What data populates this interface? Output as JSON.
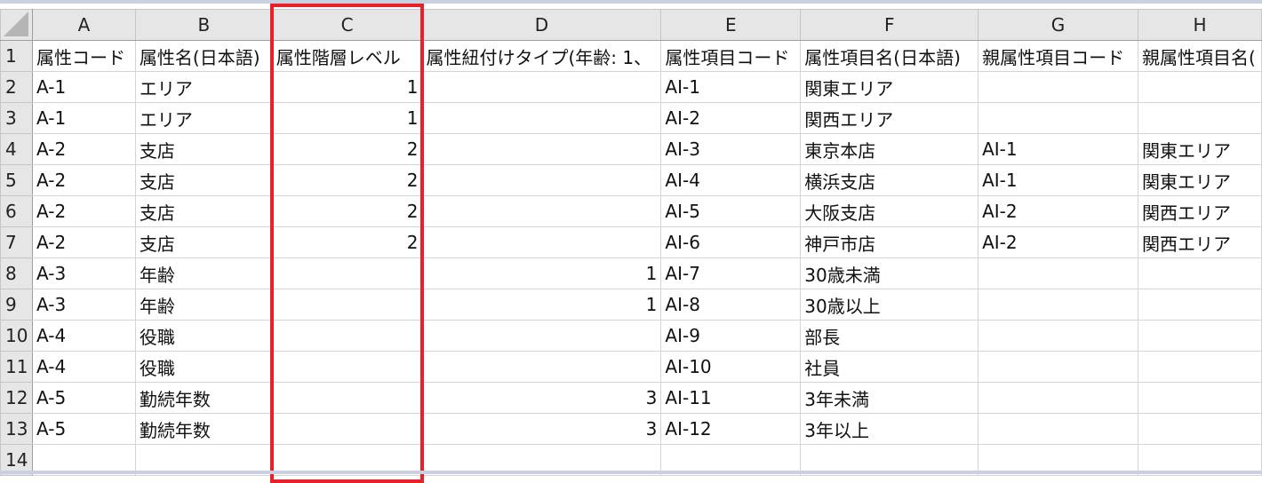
{
  "column_headers": [
    "A",
    "B",
    "C",
    "D",
    "E",
    "F",
    "G",
    "H"
  ],
  "rows": [
    {
      "n": "1",
      "cells": [
        "属性コード",
        "属性名(日本語)",
        "属性階層レベル",
        "属性紐付けタイプ(年齢: 1、",
        "属性項目コード",
        "属性項目名(日本語)",
        "親属性項目コード",
        "親属性項目名("
      ]
    },
    {
      "n": "2",
      "cells": [
        "A-1",
        "エリア",
        "1",
        "",
        "AI-1",
        "関東エリア",
        "",
        ""
      ]
    },
    {
      "n": "3",
      "cells": [
        "A-1",
        "エリア",
        "1",
        "",
        "AI-2",
        "関西エリア",
        "",
        ""
      ]
    },
    {
      "n": "4",
      "cells": [
        "A-2",
        "支店",
        "2",
        "",
        "AI-3",
        "東京本店",
        "AI-1",
        "関東エリア"
      ]
    },
    {
      "n": "5",
      "cells": [
        "A-2",
        "支店",
        "2",
        "",
        "AI-4",
        "横浜支店",
        "AI-1",
        "関東エリア"
      ]
    },
    {
      "n": "6",
      "cells": [
        "A-2",
        "支店",
        "2",
        "",
        "AI-5",
        "大阪支店",
        "AI-2",
        "関西エリア"
      ]
    },
    {
      "n": "7",
      "cells": [
        "A-2",
        "支店",
        "2",
        "",
        "AI-6",
        "神戸市店",
        "AI-2",
        "関西エリア"
      ]
    },
    {
      "n": "8",
      "cells": [
        "A-3",
        "年齢",
        "",
        "1",
        "AI-7",
        "30歳未満",
        "",
        ""
      ]
    },
    {
      "n": "9",
      "cells": [
        "A-3",
        "年齢",
        "",
        "1",
        "AI-8",
        "30歳以上",
        "",
        ""
      ]
    },
    {
      "n": "10",
      "cells": [
        "A-4",
        "役職",
        "",
        "",
        "AI-9",
        "部長",
        "",
        ""
      ]
    },
    {
      "n": "11",
      "cells": [
        "A-4",
        "役職",
        "",
        "",
        "AI-10",
        "社員",
        "",
        ""
      ]
    },
    {
      "n": "12",
      "cells": [
        "A-5",
        "勤続年数",
        "",
        "3",
        "AI-11",
        "3年未満",
        "",
        ""
      ]
    },
    {
      "n": "13",
      "cells": [
        "A-5",
        "勤続年数",
        "",
        "3",
        "AI-12",
        "3年以上",
        "",
        ""
      ]
    },
    {
      "n": "14",
      "cells": [
        "",
        "",
        "",
        "",
        "",
        "",
        "",
        ""
      ]
    }
  ],
  "highlight": {
    "column": "C",
    "color": "#e8202a"
  }
}
